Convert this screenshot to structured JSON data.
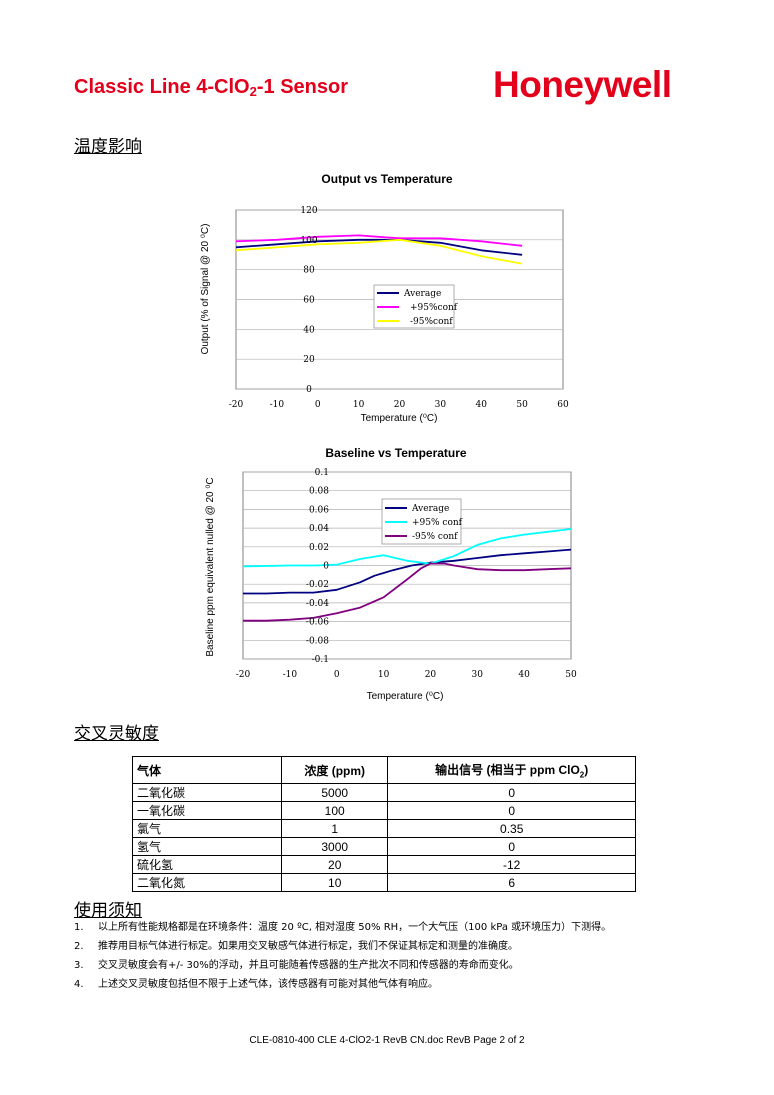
{
  "header": {
    "title_pre": "Classic Line 4-ClO",
    "title_sub": "2",
    "title_post": "-1 Sensor",
    "logo_text": "Honeywell",
    "brand_color": "#e3001b"
  },
  "sections": {
    "temperature": "温度影响",
    "cross_sensitivity": "交叉灵敏度",
    "notes": "使用须知"
  },
  "chart_data": [
    {
      "type": "line",
      "title": "Output vs Temperature",
      "xlabel": "Temperature (⁰C)",
      "ylabel": "Output (% of Signal @ 20 ⁰C)",
      "xlim": [
        -20,
        60
      ],
      "ylim": [
        0,
        120
      ],
      "xticks": [
        "-20",
        "-10",
        "0",
        "10",
        "20",
        "30",
        "40",
        "50",
        "60"
      ],
      "yticks": [
        "0",
        "20",
        "40",
        "60",
        "80",
        "100",
        "120"
      ],
      "grid": true,
      "legend": "center-right",
      "series": [
        {
          "name": "Average",
          "color": "#000080",
          "x": [
            -20,
            -10,
            0,
            10,
            20,
            30,
            40,
            50
          ],
          "y": [
            95,
            97,
            99,
            100,
            100,
            98,
            93,
            90
          ]
        },
        {
          "name": "+95%conf",
          "color": "#ff00ff",
          "x": [
            -20,
            -10,
            0,
            10,
            20,
            30,
            40,
            50
          ],
          "y": [
            99,
            100,
            102,
            103,
            101,
            101,
            99,
            96
          ]
        },
        {
          "name": "-95%conf",
          "color": "#ffff00",
          "x": [
            -20,
            -10,
            0,
            10,
            20,
            30,
            40,
            50
          ],
          "y": [
            93,
            95,
            97,
            98,
            100,
            96,
            89,
            84
          ]
        }
      ]
    },
    {
      "type": "line",
      "title": "Baseline vs Temperature",
      "xlabel": "Temperature (⁰C)",
      "ylabel": "Baseline ppm equivalent nulled @ 20 ⁰C",
      "xlim": [
        -20,
        50
      ],
      "ylim": [
        -0.1,
        0.1
      ],
      "xticks": [
        "-20",
        "-10",
        "0",
        "10",
        "20",
        "30",
        "40",
        "50"
      ],
      "yticks": [
        "0.1",
        "0.08",
        "0.06",
        "0.04",
        "0.02",
        "0",
        "-0.02",
        "-0.04",
        "-0.06",
        "-0.08",
        "-0.1"
      ],
      "grid": true,
      "legend": "center-right",
      "series": [
        {
          "name": "Average",
          "color": "#000080",
          "x": [
            -20,
            -15,
            -10,
            -5,
            0,
            5,
            8,
            12,
            16,
            20,
            25,
            30,
            35,
            40,
            45,
            50
          ],
          "y": [
            -0.03,
            -0.03,
            -0.029,
            -0.029,
            -0.026,
            -0.018,
            -0.011,
            -0.005,
            0.0,
            0.003,
            0.005,
            0.008,
            0.011,
            0.013,
            0.015,
            0.017
          ]
        },
        {
          "name": "+95% conf",
          "color": "#00ffff",
          "x": [
            -20,
            -10,
            -5,
            0,
            5,
            10,
            15,
            20,
            25,
            30,
            35,
            40,
            45,
            50
          ],
          "y": [
            -0.001,
            0.0,
            0.0,
            0.001,
            0.007,
            0.011,
            0.005,
            0.002,
            0.01,
            0.022,
            0.029,
            0.033,
            0.036,
            0.039
          ]
        },
        {
          "name": "-95% conf",
          "color": "#800080",
          "x": [
            -20,
            -15,
            -10,
            -5,
            0,
            5,
            10,
            15,
            18,
            20,
            23,
            25,
            30,
            35,
            40,
            45,
            50
          ],
          "y": [
            -0.059,
            -0.059,
            -0.058,
            -0.056,
            -0.051,
            -0.045,
            -0.034,
            -0.015,
            -0.003,
            0.002,
            0.002,
            0.0,
            -0.004,
            -0.005,
            -0.005,
            -0.004,
            -0.003
          ]
        }
      ]
    }
  ],
  "cross_table": {
    "headers": [
      "气体",
      "浓度 (ppm)",
      "输出信号 (相当于 ppm ClO",
      "2",
      ")"
    ],
    "rows": [
      [
        "二氧化碳",
        "5000",
        "0"
      ],
      [
        "一氧化碳",
        "100",
        "0"
      ],
      [
        "氯气",
        "1",
        "0.35"
      ],
      [
        "氢气",
        "3000",
        "0"
      ],
      [
        "硫化氢",
        "20",
        "-12"
      ],
      [
        "二氧化氮",
        "10",
        "6"
      ]
    ]
  },
  "notes": [
    {
      "num": "1.",
      "text": "以上所有性能规格都是在环境条件：温度 20 ºC, 相对湿度 50% RH，一个大气压（100 kPa 或环境压力）下测得。"
    },
    {
      "num": "2.",
      "text": "推荐用目标气体进行标定。如果用交叉敏感气体进行标定，我们不保证其标定和测量的准确度。"
    },
    {
      "num": "3.",
      "text": "交叉灵敏度会有+/- 30%的浮动，并且可能随着传感器的生产批次不同和传感器的寿命而变化。"
    },
    {
      "num": "4.",
      "text": "上述交叉灵敏度包括但不限于上述气体，该传感器有可能对其他气体有响应。"
    }
  ],
  "footer": "CLE-0810-400 CLE 4-ClO2-1 RevB CN.doc RevB Page 2 of 2"
}
